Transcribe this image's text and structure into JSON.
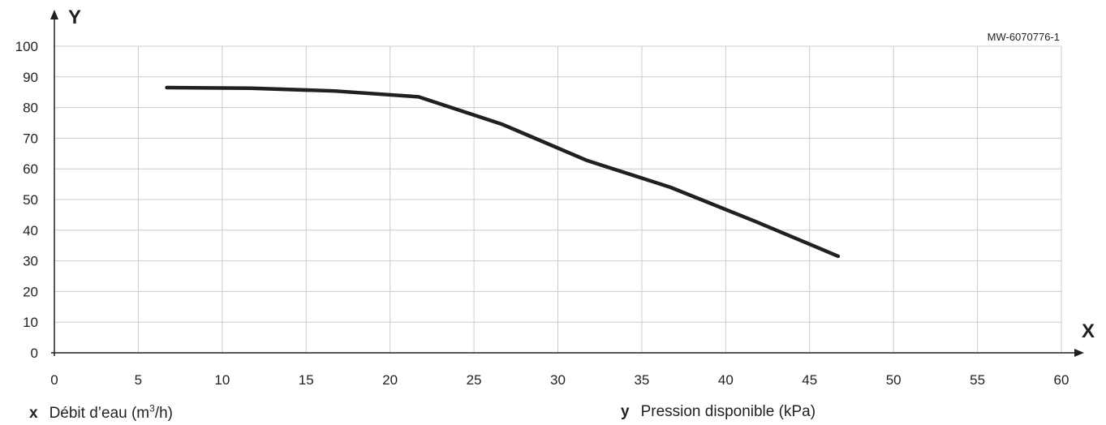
{
  "reference": "MW-6070776-1",
  "axis_letters": {
    "x": "X",
    "y": "Y"
  },
  "legend": {
    "x": {
      "key": "x",
      "label_before": "Débit d’eau (m",
      "label_sup": "3",
      "label_after": "/h)"
    },
    "y": {
      "key": "y",
      "label": "Pression disponible (kPa)"
    }
  },
  "colors": {
    "line": "#231f20",
    "grid": "#cccccc",
    "axis": "#231f20"
  },
  "chart_data": {
    "type": "line",
    "title": "",
    "xlabel": "Débit d’eau (m3/h)",
    "ylabel": "Pression disponible (kPa)",
    "xlim": [
      0,
      60
    ],
    "ylim": [
      0,
      100
    ],
    "xticks": [
      0,
      5,
      10,
      15,
      20,
      25,
      30,
      35,
      40,
      45,
      50,
      55,
      60
    ],
    "yticks": [
      0,
      10,
      20,
      30,
      40,
      50,
      60,
      70,
      80,
      90,
      100
    ],
    "grid": true,
    "series": [
      {
        "x": [
          6.7,
          11.7,
          16.7,
          21.7,
          26.7,
          31.7,
          36.7,
          41.7,
          46.7
        ],
        "y": [
          86.5,
          86.3,
          85.4,
          83.5,
          74.5,
          62.8,
          54.0,
          43.0,
          31.5
        ]
      }
    ]
  }
}
